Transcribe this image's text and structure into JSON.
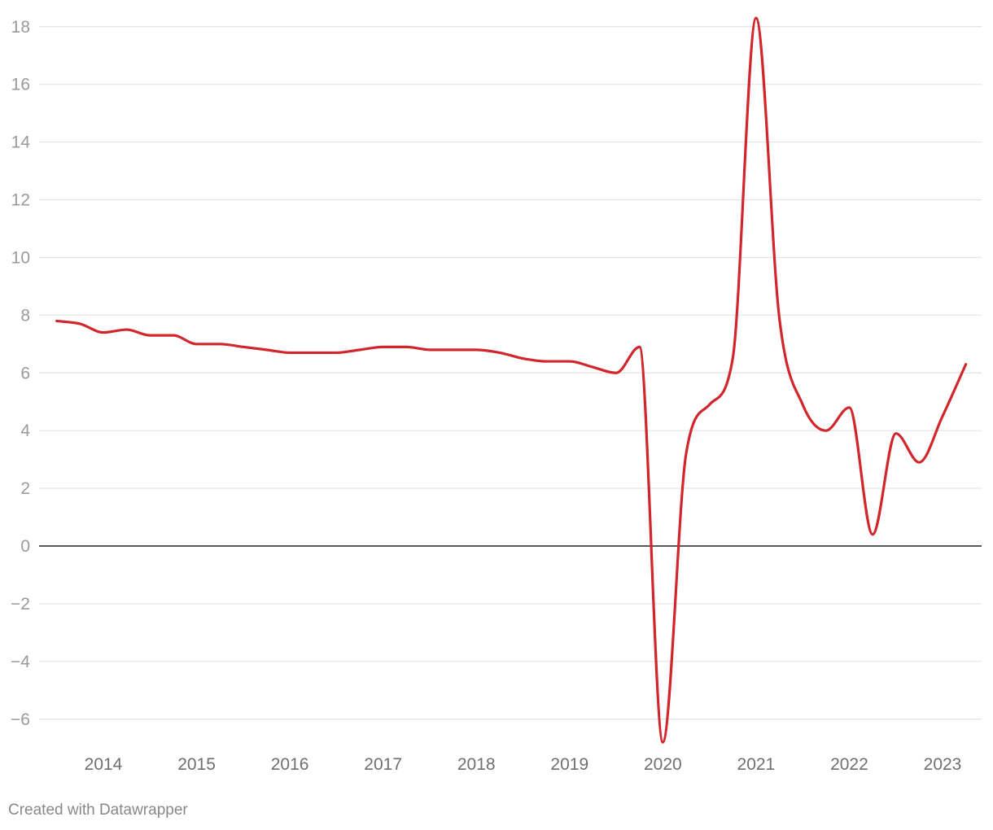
{
  "chart_data": {
    "type": "line",
    "title": "",
    "xlabel": "",
    "ylabel": "",
    "ylim": [
      -7,
      18.5
    ],
    "xlim": [
      "2013-06-01",
      "2023-04-01"
    ],
    "grid": true,
    "y_ticks": [
      18,
      16,
      14,
      12,
      10,
      8,
      6,
      4,
      2,
      0,
      -2,
      -4,
      -6
    ],
    "y_tick_labels": [
      "18",
      "16",
      "14",
      "12",
      "10",
      "8",
      "6",
      "4",
      "2",
      "0",
      "−2",
      "−4",
      "−6"
    ],
    "x_ticks": [
      "2014",
      "2015",
      "2016",
      "2017",
      "2018",
      "2019",
      "2020",
      "2021",
      "2022",
      "2023"
    ],
    "series": [
      {
        "color": "#d1262b",
        "points": [
          {
            "x": "2013-07-01",
            "y": 7.8
          },
          {
            "x": "2013-10-01",
            "y": 7.7
          },
          {
            "x": "2014-01-01",
            "y": 7.4
          },
          {
            "x": "2014-04-01",
            "y": 7.5
          },
          {
            "x": "2014-07-01",
            "y": 7.3
          },
          {
            "x": "2014-10-01",
            "y": 7.3
          },
          {
            "x": "2015-01-01",
            "y": 7.0
          },
          {
            "x": "2015-04-01",
            "y": 7.0
          },
          {
            "x": "2015-07-01",
            "y": 6.9
          },
          {
            "x": "2015-10-01",
            "y": 6.8
          },
          {
            "x": "2016-01-01",
            "y": 6.7
          },
          {
            "x": "2016-04-01",
            "y": 6.7
          },
          {
            "x": "2016-07-01",
            "y": 6.7
          },
          {
            "x": "2016-10-01",
            "y": 6.8
          },
          {
            "x": "2017-01-01",
            "y": 6.9
          },
          {
            "x": "2017-04-01",
            "y": 6.9
          },
          {
            "x": "2017-07-01",
            "y": 6.8
          },
          {
            "x": "2017-10-01",
            "y": 6.8
          },
          {
            "x": "2018-01-01",
            "y": 6.8
          },
          {
            "x": "2018-04-01",
            "y": 6.7
          },
          {
            "x": "2018-07-01",
            "y": 6.5
          },
          {
            "x": "2018-10-01",
            "y": 6.4
          },
          {
            "x": "2019-01-01",
            "y": 6.4
          },
          {
            "x": "2019-04-01",
            "y": 6.2
          },
          {
            "x": "2019-07-01",
            "y": 6.0
          },
          {
            "x": "2019-10-01",
            "y": 6.9
          },
          {
            "x": "2020-01-01",
            "y": -6.8
          },
          {
            "x": "2020-04-01",
            "y": 3.2
          },
          {
            "x": "2020-07-01",
            "y": 4.9
          },
          {
            "x": "2020-10-01",
            "y": 6.5
          },
          {
            "x": "2021-01-01",
            "y": 18.3
          },
          {
            "x": "2021-04-01",
            "y": 7.9
          },
          {
            "x": "2021-07-01",
            "y": 4.9
          },
          {
            "x": "2021-10-01",
            "y": 4.0
          },
          {
            "x": "2022-01-01",
            "y": 4.8
          },
          {
            "x": "2022-04-01",
            "y": 0.4
          },
          {
            "x": "2022-07-01",
            "y": 3.9
          },
          {
            "x": "2022-10-01",
            "y": 2.9
          },
          {
            "x": "2023-01-01",
            "y": 4.5
          },
          {
            "x": "2023-04-01",
            "y": 6.3
          }
        ]
      }
    ]
  },
  "footer": {
    "credit": "Created with Datawrapper"
  }
}
